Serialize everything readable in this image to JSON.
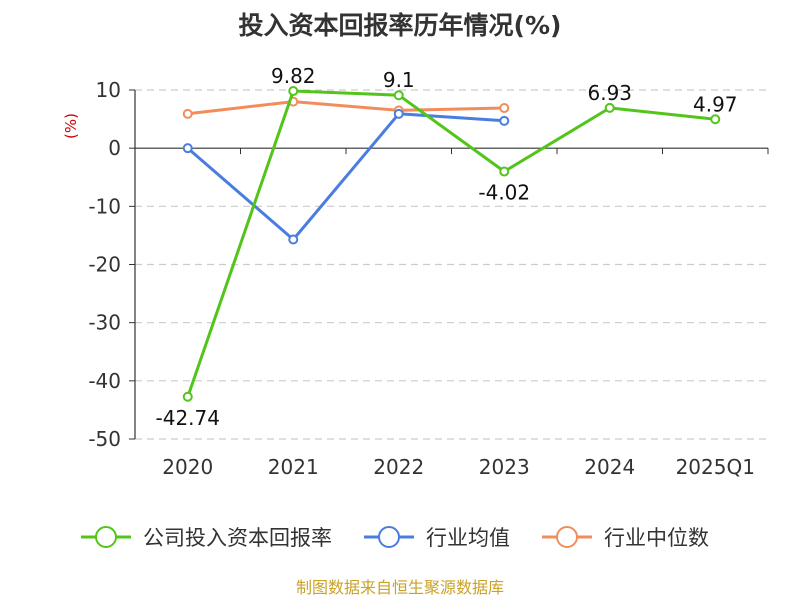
{
  "chart_data": {
    "type": "line",
    "title": "投入资本回报率历年情况(%)",
    "ylabel": "(%)",
    "categories": [
      "2020",
      "2021",
      "2022",
      "2023",
      "2024",
      "2025Q1"
    ],
    "ylim": [
      -50,
      10
    ],
    "yticks": [
      10,
      0,
      -10,
      -20,
      -30,
      -40,
      -50
    ],
    "grid": true,
    "legend_position": "bottom",
    "series": [
      {
        "name": "公司投入资本回报率",
        "color": "#52c41a",
        "values": [
          -42.74,
          9.82,
          9.1,
          -4.02,
          6.93,
          4.97
        ],
        "labels": [
          "-42.74",
          "9.82",
          "9.1",
          "-4.02",
          "6.93",
          "4.97"
        ]
      },
      {
        "name": "行业均值",
        "color": "#4a7de0",
        "values": [
          0.0,
          -15.7,
          5.9,
          4.7,
          null,
          null
        ]
      },
      {
        "name": "行业中位数",
        "color": "#f28d5b",
        "values": [
          5.9,
          8.0,
          6.5,
          6.9,
          null,
          null
        ]
      }
    ]
  },
  "footer": {
    "source": "制图数据来自恒生聚源数据库"
  }
}
